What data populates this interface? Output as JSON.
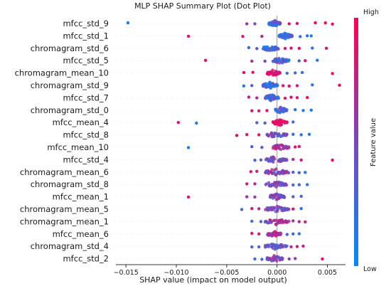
{
  "chart_data": {
    "type": "scatter",
    "title": "MLP SHAP Summary Plot (Dot Plot)",
    "xlabel": "SHAP value (impact on model output)",
    "xlim": [
      -0.016,
      0.0068
    ],
    "x_ticks": [
      {
        "value": -0.015,
        "label": "−0.015"
      },
      {
        "value": -0.01,
        "label": "−0.010"
      },
      {
        "value": -0.005,
        "label": "−0.005"
      },
      {
        "value": 0.0,
        "label": "0.000"
      },
      {
        "value": 0.005,
        "label": "0.005"
      }
    ],
    "colorbar": {
      "label": "Feature value",
      "high_label": "High",
      "low_label": "Low",
      "high_color": "#ff0052",
      "low_color": "#008bfb"
    },
    "features": [
      {
        "name": "mfcc_std_9",
        "core": [
          -0.0008,
          0.0004
        ],
        "core_color": 0.3,
        "outliers": [
          [
            -0.0148,
            0.1
          ],
          [
            -0.003,
            0.6
          ],
          [
            -0.0022,
            0.5
          ],
          [
            0.0012,
            0.85
          ],
          [
            0.002,
            0.9
          ],
          [
            0.0038,
            0.95
          ],
          [
            0.0048,
            0.92
          ],
          [
            0.0055,
            0.88
          ]
        ]
      },
      {
        "name": "mfcc_std_1",
        "core": [
          0.0002,
          0.0015
        ],
        "core_color": 0.25,
        "outliers": [
          [
            -0.0088,
            0.92
          ],
          [
            -0.0034,
            0.8
          ],
          [
            -0.0015,
            0.7
          ],
          [
            0.0023,
            0.2
          ],
          [
            0.003,
            0.15
          ],
          [
            0.0034,
            0.1
          ]
        ]
      },
      {
        "name": "chromagram_std_6",
        "core": [
          -0.0014,
          0.0002
        ],
        "core_color": 0.25,
        "outliers": [
          [
            -0.0028,
            0.2
          ],
          [
            -0.002,
            0.35
          ],
          [
            0.0008,
            0.8
          ],
          [
            0.0014,
            0.85
          ],
          [
            0.0022,
            0.9
          ],
          [
            0.0035,
            0.2
          ],
          [
            0.0049,
            0.85
          ]
        ]
      },
      {
        "name": "mfcc_std_5",
        "core": [
          -0.0004,
          0.0012
        ],
        "core_color": 0.35,
        "outliers": [
          [
            -0.0071,
            0.95
          ],
          [
            -0.0025,
            0.7
          ],
          [
            -0.0012,
            0.55
          ],
          [
            0.0022,
            0.3
          ],
          [
            0.0028,
            0.85
          ],
          [
            0.004,
            0.15
          ]
        ]
      },
      {
        "name": "chromagram_mean_10",
        "core": [
          -0.001,
          0.0003
        ],
        "core_color": 0.9,
        "outliers": [
          [
            -0.0033,
            0.92
          ],
          [
            -0.0024,
            0.85
          ],
          [
            0.001,
            0.2
          ],
          [
            0.0018,
            0.25
          ],
          [
            0.0025,
            0.2
          ],
          [
            0.0055,
            0.92
          ]
        ]
      },
      {
        "name": "chromagram_std_9",
        "core": [
          -0.0014,
          0.0001
        ],
        "core_color": 0.25,
        "outliers": [
          [
            -0.0033,
            0.15
          ],
          [
            -0.0025,
            0.3
          ],
          [
            0.0006,
            0.85
          ],
          [
            0.0012,
            0.9
          ],
          [
            0.002,
            0.8
          ],
          [
            0.0035,
            0.2
          ],
          [
            0.0062,
            0.95
          ]
        ]
      },
      {
        "name": "mfcc_std_7",
        "core": [
          -0.0012,
          0.0002
        ],
        "core_color": 0.25,
        "outliers": [
          [
            -0.0028,
            0.8
          ],
          [
            -0.002,
            0.7
          ],
          [
            0.0008,
            0.85
          ],
          [
            0.0014,
            0.9
          ],
          [
            0.002,
            0.85
          ],
          [
            0.003,
            0.92
          ]
        ]
      },
      {
        "name": "chromagram_std_0",
        "core": [
          -0.0002,
          0.001
        ],
        "core_color": 0.3,
        "outliers": [
          [
            -0.0025,
            0.85
          ],
          [
            -0.0018,
            0.8
          ],
          [
            -0.001,
            0.9
          ],
          [
            0.0018,
            0.2
          ],
          [
            0.0026,
            0.15
          ],
          [
            0.0034,
            0.1
          ]
        ]
      },
      {
        "name": "mfcc_mean_4",
        "core": [
          -0.0004,
          0.001
        ],
        "core_color": 0.88,
        "outliers": [
          [
            -0.0098,
            0.9
          ],
          [
            -0.008,
            0.15
          ],
          [
            -0.002,
            0.3
          ],
          [
            -0.0012,
            0.35
          ],
          [
            0.0016,
            0.25
          ]
        ]
      },
      {
        "name": "mfcc_std_8",
        "core": [
          -0.001,
          0.001
        ],
        "core_color": 0.4,
        "outliers": [
          [
            -0.004,
            0.95
          ],
          [
            -0.003,
            0.85
          ],
          [
            -0.0018,
            0.9
          ],
          [
            0.0016,
            0.25
          ],
          [
            0.0024,
            0.2
          ],
          [
            0.0032,
            0.15
          ]
        ]
      },
      {
        "name": "mfcc_mean_10",
        "core": [
          -0.0004,
          0.0012
        ],
        "core_color": 0.7,
        "outliers": [
          [
            -0.0088,
            0.1
          ],
          [
            -0.0025,
            0.3
          ],
          [
            -0.0015,
            0.35
          ],
          [
            0.0018,
            0.85
          ],
          [
            0.0022,
            0.9
          ]
        ]
      },
      {
        "name": "mfcc_std_4",
        "core": [
          -0.0012,
          0.001
        ],
        "core_color": 0.45,
        "outliers": [
          [
            -0.0022,
            0.3
          ],
          [
            -0.0016,
            0.35
          ],
          [
            0.0016,
            0.7
          ],
          [
            0.0024,
            0.8
          ],
          [
            0.0055,
            0.92
          ]
        ]
      },
      {
        "name": "chromagram_mean_6",
        "core": [
          -0.0012,
          0.0012
        ],
        "core_color": 0.55,
        "outliers": [
          [
            -0.0026,
            0.8
          ],
          [
            -0.002,
            0.75
          ],
          [
            -0.001,
            0.3
          ],
          [
            0.0016,
            0.35
          ],
          [
            0.0022,
            0.25
          ],
          [
            0.0028,
            0.2
          ]
        ]
      },
      {
        "name": "chromagram_std_8",
        "core": [
          -0.0012,
          0.001
        ],
        "core_color": 0.5,
        "outliers": [
          [
            -0.003,
            0.8
          ],
          [
            -0.0022,
            0.75
          ],
          [
            0.0016,
            0.3
          ],
          [
            0.0022,
            0.25
          ],
          [
            0.003,
            0.2
          ]
        ]
      },
      {
        "name": "mfcc_mean_1",
        "core": [
          -0.0008,
          0.0008
        ],
        "core_color": 0.5,
        "outliers": [
          [
            -0.0088,
            0.9
          ],
          [
            -0.003,
            0.6
          ],
          [
            -0.0022,
            0.55
          ],
          [
            0.0016,
            0.35
          ],
          [
            0.0024,
            0.3
          ]
        ]
      },
      {
        "name": "chromagram_mean_5",
        "core": [
          -0.0012,
          0.0012
        ],
        "core_color": 0.5,
        "outliers": [
          [
            -0.0035,
            0.2
          ],
          [
            -0.0025,
            0.8
          ],
          [
            -0.0018,
            0.7
          ],
          [
            0.0016,
            0.85
          ],
          [
            0.0024,
            0.2
          ]
        ]
      },
      {
        "name": "chromagram_mean_1",
        "core": [
          -0.0012,
          0.0012
        ],
        "core_color": 0.6,
        "outliers": [
          [
            -0.0025,
            0.2
          ],
          [
            -0.0016,
            0.3
          ],
          [
            0.0016,
            0.65
          ],
          [
            0.0022,
            0.7
          ],
          [
            0.0028,
            0.75
          ]
        ]
      },
      {
        "name": "mfcc_mean_6",
        "core": [
          -0.001,
          0.0004
        ],
        "core_color": 0.75,
        "outliers": [
          [
            -0.0025,
            0.85
          ],
          [
            -0.0018,
            0.8
          ],
          [
            0.001,
            0.3
          ],
          [
            0.0016,
            0.25
          ],
          [
            0.0022,
            0.2
          ]
        ]
      },
      {
        "name": "chromagram_std_4",
        "core": [
          -0.0012,
          0.001
        ],
        "core_color": 0.4,
        "outliers": [
          [
            -0.0025,
            0.25
          ],
          [
            -0.0018,
            0.3
          ],
          [
            0.0014,
            0.7
          ],
          [
            0.002,
            0.75
          ],
          [
            0.0026,
            0.8
          ]
        ]
      },
      {
        "name": "mfcc_std_2",
        "core": [
          -0.001,
          0.0006
        ],
        "core_color": 0.5,
        "outliers": [
          [
            -0.0022,
            0.2
          ],
          [
            -0.0015,
            0.3
          ],
          [
            0.0012,
            0.55
          ],
          [
            0.0018,
            0.6
          ],
          [
            0.0045,
            0.9
          ]
        ]
      }
    ]
  }
}
